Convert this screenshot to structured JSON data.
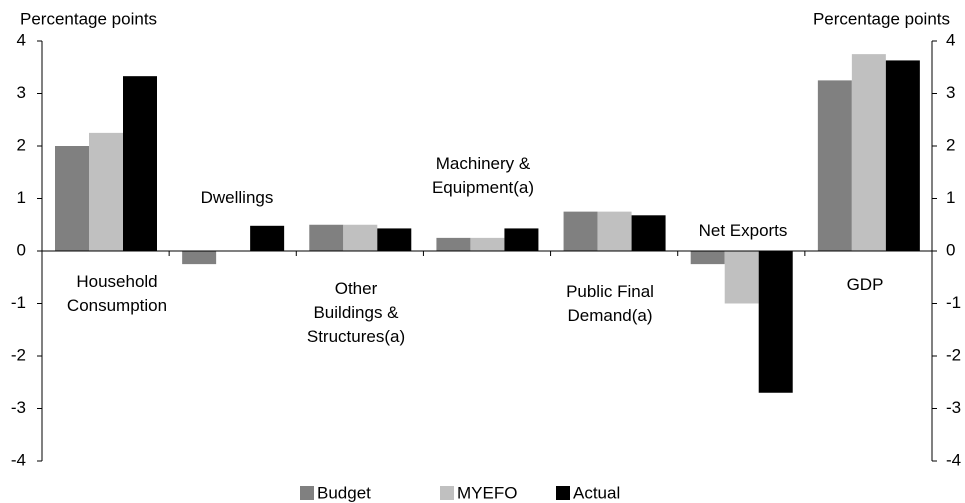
{
  "chart_data": {
    "type": "bar",
    "ylabel": "Percentage points",
    "y2label": "Percentage points",
    "categories": [
      "Household\nConsumption",
      "Dwellings",
      "Other\nBuildings &\nStructures(a)",
      "Machinery &\nEquipment(a)",
      "Public Final\nDemand(a)",
      "Net Exports",
      "GDP"
    ],
    "series": [
      {
        "name": "Budget",
        "color": "#808080",
        "values": [
          2.0,
          -0.25,
          0.5,
          0.25,
          0.75,
          -0.25,
          3.25
        ]
      },
      {
        "name": "MYEFO",
        "color": "#c0c0c0",
        "values": [
          2.25,
          0,
          0.5,
          0.25,
          0.75,
          -1.0,
          3.75
        ]
      },
      {
        "name": "Actual",
        "color": "#000000",
        "values": [
          3.33,
          0.48,
          0.43,
          0.43,
          0.68,
          -2.7,
          3.63
        ]
      }
    ],
    "ylim": [
      -4,
      4
    ],
    "yticks": [
      -4,
      -3,
      -2,
      -1,
      0,
      1,
      2,
      3,
      4
    ],
    "y2lim": [
      -4,
      4
    ],
    "y2ticks": [
      -4,
      -3,
      -2,
      -1,
      0,
      1,
      2,
      3,
      4
    ],
    "legend": "bottom"
  }
}
